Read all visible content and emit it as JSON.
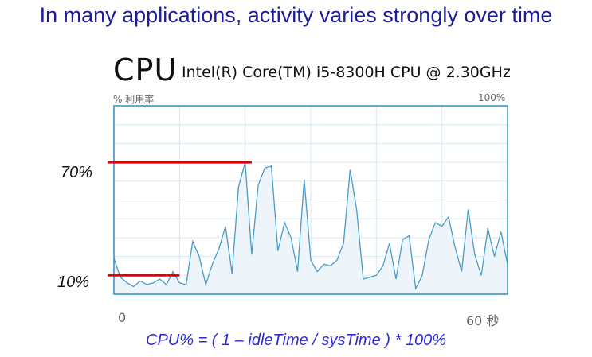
{
  "headline": "In many applications, activity varies strongly over time",
  "cpu_panel": {
    "title": "CPU",
    "model": "Intel(R) Core(TM) i5-8300H CPU @ 2.30GHz",
    "y_axis_label": "% 利用率",
    "y_max_label": "100%",
    "x_start_label": "0",
    "x_end_label": "60 秒"
  },
  "markers": {
    "high_label": "70%",
    "low_label": "10%"
  },
  "formula": "CPU% =  ( 1 – idleTime / sysTime )  * 100%",
  "colors": {
    "headline": "#1c1c9a",
    "graph_line": "#4a9cc8",
    "graph_fill": "#eef5fa",
    "grid": "#d6e8f3",
    "frame": "#2f8fc4",
    "marker": "#e00000",
    "formula": "#2a2ad8"
  },
  "chart_data": {
    "type": "area",
    "x_range": [
      0,
      60
    ],
    "y_range": [
      0,
      100
    ],
    "x": [
      0,
      1,
      2,
      3,
      4,
      5,
      6,
      7,
      8,
      9,
      10,
      11,
      12,
      13,
      14,
      15,
      16,
      17,
      18,
      19,
      20,
      21,
      22,
      23,
      24,
      25,
      26,
      27,
      28,
      29,
      30,
      31,
      32,
      33,
      34,
      35,
      36,
      37,
      38,
      39,
      40,
      41,
      42,
      43,
      44,
      45,
      46,
      47,
      48,
      49,
      50,
      51,
      52,
      53,
      54,
      55,
      56,
      57,
      58,
      59,
      60
    ],
    "values": [
      19,
      9,
      6,
      4,
      7,
      5,
      6,
      8,
      5,
      12,
      6,
      5,
      28,
      20,
      5,
      16,
      24,
      36,
      11,
      57,
      70,
      21,
      58,
      67,
      68,
      23,
      38,
      30,
      12,
      61,
      18,
      12,
      16,
      15,
      18,
      27,
      66,
      45,
      8,
      9,
      10,
      15,
      27,
      8,
      29,
      31,
      3,
      10,
      29,
      38,
      36,
      41,
      25,
      12,
      45,
      21,
      10,
      35,
      20,
      33,
      16
    ],
    "markers": [
      {
        "label": "70%",
        "value": 70,
        "x_end": 21
      },
      {
        "label": "10%",
        "value": 10,
        "x_end": 10
      }
    ]
  }
}
